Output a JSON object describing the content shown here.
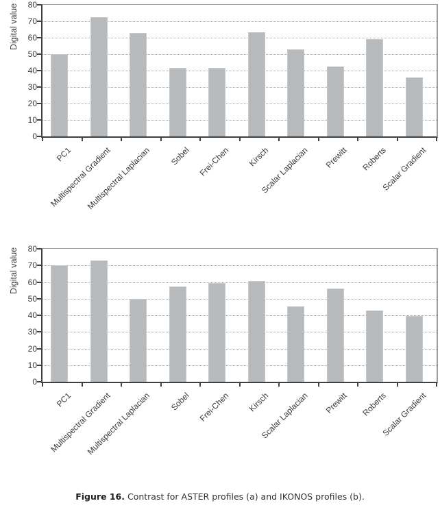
{
  "figure": {
    "caption_bold": "Figure 16.",
    "caption_rest": " Contrast for ASTER profiles (a) and IKONOS profiles (b)."
  },
  "colors": {
    "bar_fill": "#b7babc",
    "axis": "#3d3f40",
    "frame": "#9a9da0",
    "gridline": "#a3a6a8",
    "text": "#3a3a3a"
  },
  "chart_data": [
    {
      "id": "aster",
      "panel": "a",
      "type": "bar",
      "title": "",
      "xlabel": "",
      "ylabel": "Digital value",
      "ylim": [
        0,
        80
      ],
      "ytick_step": 10,
      "grid": "horizontal-dotted",
      "legend": "none",
      "categories": [
        "PC1",
        "Multispectral Gradient",
        "Multispectral Laplacian",
        "Sobel",
        "Frei-Chen",
        "Kirsch",
        "Scalar Laplacian",
        "Prewitt",
        "Roberts",
        "Scalar Gradient"
      ],
      "values": [
        50,
        72.5,
        63,
        41.5,
        41.5,
        63.5,
        53,
        42.5,
        59,
        36
      ]
    },
    {
      "id": "ikonos",
      "panel": "b",
      "type": "bar",
      "title": "",
      "xlabel": "",
      "ylabel": "Digital value",
      "ylim": [
        0,
        80
      ],
      "ytick_step": 10,
      "grid": "horizontal-dotted",
      "legend": "none",
      "categories": [
        "PC1",
        "Multispectral Gradient",
        "Multispectral Laplacian",
        "Sobel",
        "Frei-Chen",
        "Kirsch",
        "Scalar Laplacian",
        "Prewitt",
        "Roberts",
        "Scalar Gradient"
      ],
      "values": [
        70,
        73,
        50,
        57.5,
        59.5,
        60.5,
        45.5,
        56,
        43,
        39.5
      ]
    }
  ]
}
